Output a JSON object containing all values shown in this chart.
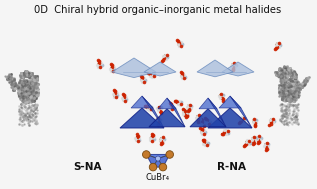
{
  "title": "0D  Chiral hybrid organic–inorganic metal halides",
  "title_fontsize": 7.2,
  "label_left": "S-NA",
  "label_right": "R-NA",
  "label_center": "CuBr₄",
  "label_fontsize": 7.5,
  "bg_color": "#f5f5f5",
  "fig_width": 3.17,
  "fig_height": 1.89,
  "dpi": 100
}
